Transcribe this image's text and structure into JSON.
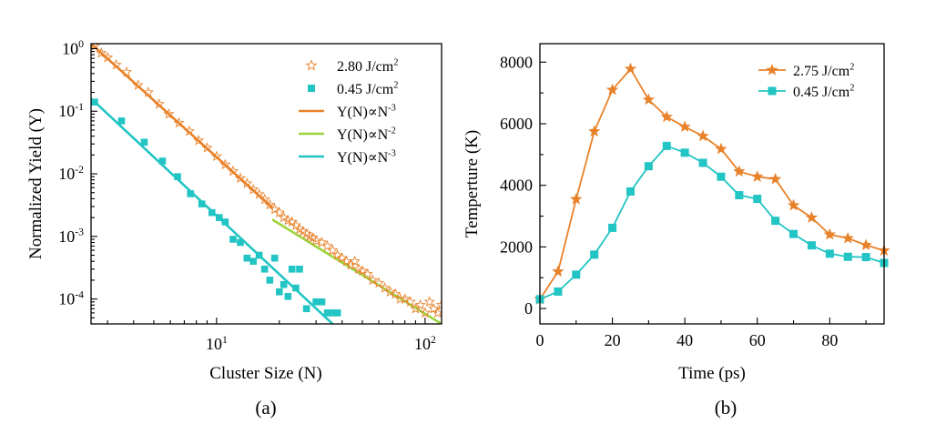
{
  "colors": {
    "orange": "#E8822A",
    "green": "#9BD43C",
    "cyan": "#22C4C4"
  },
  "chart_data": [
    {
      "id": "a",
      "type": "scatter",
      "caption": "(a)",
      "xlabel": "Cluster Size (N)",
      "ylabel": "Normalized Yield (Y)",
      "xscale": "log",
      "yscale": "log",
      "xlim": [
        2.5,
        120
      ],
      "ylim": [
        4e-05,
        1.2
      ],
      "x_ticks": [
        {
          "v": 10,
          "base": "10",
          "exp": "1"
        },
        {
          "v": 100,
          "base": "10",
          "exp": "2"
        }
      ],
      "y_ticks": [
        {
          "v": 1,
          "base": "10",
          "exp": "0"
        },
        {
          "v": 0.1,
          "base": "10",
          "exp": "-1"
        },
        {
          "v": 0.01,
          "base": "10",
          "exp": "-2"
        },
        {
          "v": 0.001,
          "base": "10",
          "exp": "-3"
        },
        {
          "v": 0.0001,
          "base": "10",
          "exp": "-4"
        }
      ],
      "legend_position": "top-right",
      "series": [
        {
          "name": "2.80 J/cm",
          "name_sup": "2",
          "kind": "points",
          "marker": "star-open",
          "color": "#E8822A",
          "x": [
            2.6,
            2.8,
            3.0,
            3.3,
            3.7,
            4.2,
            4.7,
            5.3,
            5.9,
            6.6,
            7.4,
            8.2,
            9.0,
            10,
            11,
            12,
            13,
            14,
            15,
            16,
            17,
            18,
            19,
            20,
            21,
            22,
            23,
            24,
            25,
            26,
            27,
            28,
            29,
            30,
            32,
            34,
            36,
            38,
            40,
            42,
            44,
            46,
            48,
            50,
            53,
            56,
            60,
            64,
            68,
            72,
            76,
            80,
            85,
            90,
            95,
            100,
            105,
            110,
            115,
            120
          ],
          "y": [
            1.1,
            0.85,
            0.72,
            0.55,
            0.42,
            0.26,
            0.2,
            0.13,
            0.09,
            0.065,
            0.048,
            0.034,
            0.026,
            0.019,
            0.014,
            0.011,
            0.0085,
            0.007,
            0.0056,
            0.0047,
            0.0039,
            0.0032,
            0.0027,
            0.0024,
            0.002,
            0.0018,
            0.0017,
            0.0015,
            0.0013,
            0.0012,
            0.0011,
            0.001,
            0.00095,
            0.00085,
            0.0008,
            0.0007,
            0.0006,
            0.0005,
            0.00045,
            0.0004,
            0.00035,
            0.0004,
            0.0003,
            0.00028,
            0.00025,
            0.0002,
            0.00018,
            0.00015,
            0.00013,
            0.00012,
            0.0001,
            0.0001,
            9e-05,
            7e-05,
            8e-05,
            6e-05,
            9e-05,
            7e-05,
            6e-05,
            8e-05
          ]
        },
        {
          "name": "0.45 J/cm",
          "name_sup": "2",
          "kind": "points",
          "marker": "square",
          "color": "#22C4C4",
          "x": [
            2.6,
            3.5,
            4.5,
            5.5,
            6.5,
            7.5,
            8.5,
            9.5,
            10.3,
            11,
            12,
            13,
            14,
            15,
            16,
            17,
            18,
            19,
            20,
            21,
            22,
            23,
            24,
            25,
            27,
            30,
            32,
            34,
            36,
            38
          ],
          "y": [
            0.14,
            0.07,
            0.032,
            0.016,
            0.009,
            0.0048,
            0.0033,
            0.0024,
            0.002,
            0.0017,
            0.0009,
            0.0008,
            0.00045,
            0.0004,
            0.0005,
            0.0003,
            0.0002,
            0.00045,
            0.00013,
            0.00017,
            0.00011,
            0.0003,
            0.00015,
            0.0003,
            7e-05,
            9e-05,
            9e-05,
            6e-05,
            6e-05,
            6e-05
          ]
        },
        {
          "name": "Y(N)∝N",
          "name_sup": "-3",
          "kind": "line",
          "color": "#E8822A",
          "x": [
            2.5,
            18.5
          ],
          "y": [
            1.2,
            0.0029
          ]
        },
        {
          "name": "Y(N)∝N",
          "name_sup": "-2",
          "kind": "line",
          "color": "#9BD43C",
          "x": [
            18.5,
            120
          ],
          "y": [
            0.00186,
            4e-05
          ]
        },
        {
          "name": "Y(N)∝N",
          "name_sup": "-3",
          "kind": "line",
          "color": "#22C4C4",
          "x": [
            2.5,
            36
          ],
          "y": [
            0.16,
            4e-05
          ]
        }
      ]
    },
    {
      "id": "b",
      "type": "line",
      "caption": "(b)",
      "xlabel": "Time (ps)",
      "ylabel": "Temperture (K)",
      "xlim": [
        0,
        95
      ],
      "ylim": [
        -500,
        8600
      ],
      "x_ticks": [
        0,
        20,
        40,
        60,
        80
      ],
      "y_ticks": [
        0,
        2000,
        4000,
        6000,
        8000
      ],
      "legend_position": "top-right",
      "series": [
        {
          "name": "2.75 J/cm",
          "name_sup": "2",
          "marker": "star",
          "color": "#E8822A",
          "x": [
            0,
            5,
            10,
            15,
            20,
            25,
            30,
            35,
            40,
            45,
            50,
            55,
            60,
            65,
            70,
            75,
            80,
            85,
            90,
            95
          ],
          "y": [
            300,
            1200,
            3550,
            5750,
            7100,
            7780,
            6780,
            6220,
            5900,
            5600,
            5180,
            4450,
            4280,
            4200,
            3350,
            2950,
            2400,
            2280,
            2060,
            1880
          ]
        },
        {
          "name": "0.45 J/cm",
          "name_sup": "2",
          "marker": "square",
          "color": "#22C4C4",
          "x": [
            0,
            5,
            10,
            15,
            20,
            25,
            30,
            35,
            40,
            45,
            50,
            55,
            60,
            65,
            70,
            75,
            80,
            85,
            90,
            95
          ],
          "y": [
            300,
            550,
            1100,
            1750,
            2620,
            3800,
            4620,
            5280,
            5060,
            4730,
            4280,
            3680,
            3560,
            2850,
            2420,
            2050,
            1780,
            1680,
            1670,
            1480
          ]
        }
      ]
    }
  ]
}
